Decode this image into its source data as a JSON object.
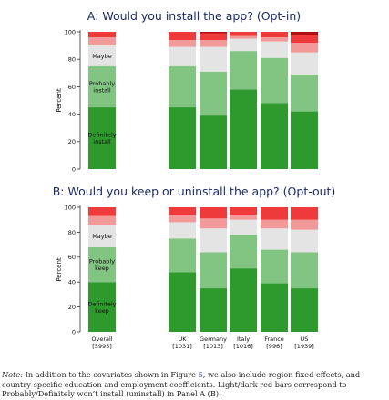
{
  "colors": {
    "def_install": "#2e9a2e",
    "prob_install": "#82c482",
    "maybe": "#e4e4e4",
    "prob_not": "#f29a9a",
    "def_not": "#ee3a3a",
    "darkest": "#b00f12",
    "title": "#1c2a66"
  },
  "chart_data": [
    {
      "type": "bar",
      "stacked": true,
      "title": "A: Would you install the app? (Opt-in)",
      "ylabel": "Percent",
      "ylim": [
        0,
        100
      ],
      "yticks": [
        0,
        20,
        40,
        60,
        80,
        100
      ],
      "categories": [
        "Overall",
        "UK",
        "Germany",
        "Italy",
        "France",
        "US"
      ],
      "series": [
        {
          "name": "Definitely install",
          "color": "def_install",
          "values": [
            45,
            45,
            39,
            58,
            48,
            42
          ]
        },
        {
          "name": "Probably install",
          "color": "prob_install",
          "values": [
            30,
            30,
            32,
            28,
            33,
            27
          ]
        },
        {
          "name": "Maybe",
          "color": "maybe",
          "values": [
            15,
            14,
            18,
            9,
            12,
            16
          ]
        },
        {
          "name": "",
          "color": "prob_not",
          "values": [
            6,
            5,
            5,
            2,
            3,
            7
          ]
        },
        {
          "name": "",
          "color": "def_not",
          "values": [
            4,
            6,
            5,
            3,
            4,
            6
          ]
        },
        {
          "name": "",
          "color": "darkest",
          "values": [
            0,
            0,
            1,
            0,
            0,
            2
          ]
        }
      ],
      "inbar_labels": {
        "Maybe": "Maybe",
        "Probably install": "Probably\ninstall",
        "Definitely install": "Definitely\ninstall"
      }
    },
    {
      "type": "bar",
      "stacked": true,
      "title": "B: Would you keep or uninstall the app? (Opt-out)",
      "ylabel": "Percent",
      "ylim": [
        0,
        100
      ],
      "yticks": [
        0,
        20,
        40,
        60,
        80,
        100
      ],
      "categories": [
        "Overall",
        "UK",
        "Germany",
        "Italy",
        "France",
        "US"
      ],
      "category_n": [
        "[5995]",
        "[1031]",
        "[1013]",
        "[1016]",
        "[996]",
        "[1939]"
      ],
      "series": [
        {
          "name": "Definitely keep",
          "color": "def_install",
          "values": [
            40,
            48,
            35,
            51,
            39,
            35
          ]
        },
        {
          "name": "Probably keep",
          "color": "prob_install",
          "values": [
            28,
            27,
            29,
            27,
            27,
            29
          ]
        },
        {
          "name": "Maybe",
          "color": "maybe",
          "values": [
            18,
            13,
            19,
            12,
            17,
            18
          ]
        },
        {
          "name": "",
          "color": "prob_not",
          "values": [
            7,
            6,
            8,
            4,
            7,
            8
          ]
        },
        {
          "name": "",
          "color": "def_not",
          "values": [
            7,
            6,
            9,
            6,
            10,
            10
          ]
        }
      ],
      "inbar_labels": {
        "Maybe": "Maybe",
        "Probably keep": "Probably\nkeep",
        "Definitely keep": "Definitely\nkeep"
      }
    }
  ],
  "note": {
    "lead": "Note:",
    "before": " In addition to the covariates shown in Figure ",
    "figure_ref": "5",
    "after": ", we also include region fixed effects, and country-specific education and employment coefficients. Light/dark red bars correspond to Probably/Definitely won’t install (uninstall) in Panel A (B)."
  }
}
